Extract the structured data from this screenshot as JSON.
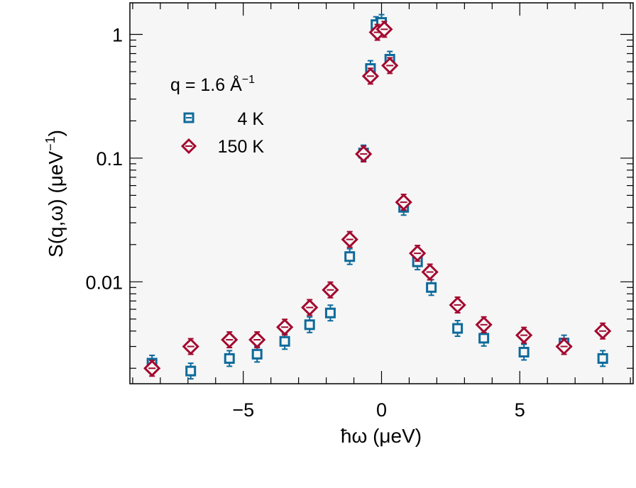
{
  "chart_data": {
    "type": "scatter",
    "xlabel": "ħω  (μeV)",
    "ylabel_main": "S(q,ω)  (μeV",
    "ylabel_sup": "−1",
    "ylabel_end": ")",
    "annotation": {
      "prefix": "q = 1.6 Å",
      "sup": "−1"
    },
    "xlim": [
      -9.1,
      9.1
    ],
    "ylim": [
      0.0015,
      1.8
    ],
    "yscale": "log",
    "xticks": [
      -5,
      0,
      5
    ],
    "xtick_labels": [
      "−5",
      "0",
      "5"
    ],
    "yticks": [
      0.01,
      0.1,
      1
    ],
    "ytick_labels": [
      "0.01",
      "0.1",
      "1"
    ],
    "grid": false,
    "legend_position": "upper-left",
    "colors": {
      "plot_bg": "#f6f6f6",
      "series_4K": "#0d6a9b",
      "series_150K": "#a3092f"
    },
    "series": [
      {
        "name": "4 K",
        "marker": "square",
        "x": [
          -8.3,
          -6.9,
          -5.5,
          -4.5,
          -3.5,
          -2.6,
          -1.85,
          -1.15,
          -0.65,
          -0.4,
          -0.2,
          0.0,
          0.3,
          0.8,
          1.3,
          1.8,
          2.75,
          3.7,
          5.15,
          6.6,
          8.0
        ],
        "y": [
          0.0022,
          0.0019,
          0.0024,
          0.0026,
          0.0033,
          0.0045,
          0.0056,
          0.016,
          0.11,
          0.53,
          1.2,
          1.25,
          0.63,
          0.04,
          0.0145,
          0.009,
          0.0042,
          0.0035,
          0.0027,
          0.0032,
          0.0024
        ]
      },
      {
        "name": "150 K",
        "marker": "diamond",
        "x": [
          -8.3,
          -6.9,
          -5.5,
          -4.5,
          -3.5,
          -2.6,
          -1.85,
          -1.15,
          -0.65,
          -0.4,
          -0.15,
          0.1,
          0.3,
          0.8,
          1.3,
          1.75,
          2.75,
          3.7,
          5.15,
          6.6,
          8.0
        ],
        "y": [
          0.002,
          0.003,
          0.0034,
          0.0034,
          0.0043,
          0.0062,
          0.0086,
          0.022,
          0.108,
          0.46,
          1.04,
          1.1,
          0.56,
          0.044,
          0.017,
          0.012,
          0.0065,
          0.0045,
          0.0037,
          0.003,
          0.004
        ]
      }
    ]
  }
}
